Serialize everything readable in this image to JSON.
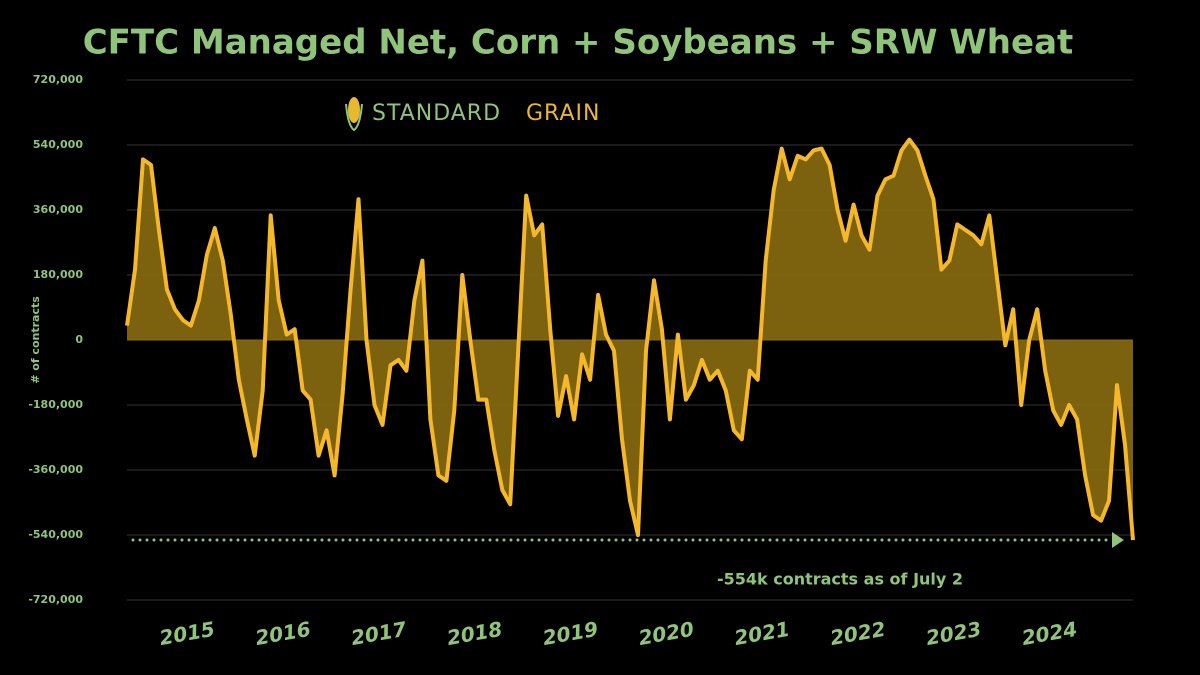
{
  "chart_data": {
    "type": "area",
    "title": "CFTC Managed Net, Corn + Soybeans + SRW Wheat",
    "y_label": "# of contracts",
    "brand": [
      "STANDARD",
      "GRAIN"
    ],
    "annotation": "-554k contracts as of July 2",
    "color": "#f5b82a",
    "fill_color": "#8a6b10",
    "grid": true,
    "ylim": [
      -720000,
      720000
    ],
    "yticks": [
      {
        "value": -720000,
        "label": "-720,000"
      },
      {
        "value": -540000,
        "label": "-540,000"
      },
      {
        "value": -360000,
        "label": "-360,000"
      },
      {
        "value": -180000,
        "label": "-180,000"
      },
      0,
      {
        "value": 180000,
        "label": "180,000"
      },
      {
        "value": 360000,
        "label": "360,000"
      },
      {
        "value": 540000,
        "label": "540,000"
      },
      {
        "value": 720000,
        "label": "720,000"
      }
    ],
    "categories": [
      null,
      null,
      null,
      null,
      null,
      null,
      null,
      null,
      null,
      null,
      null,
      null,
      "2015",
      null,
      null,
      null,
      null,
      null,
      null,
      null,
      null,
      null,
      null,
      null,
      "2016",
      null,
      null,
      null,
      null,
      null,
      null,
      null,
      null,
      null,
      null,
      null,
      "2017",
      null,
      null,
      null,
      null,
      null,
      null,
      null,
      null,
      null,
      null,
      null,
      "2018",
      null,
      null,
      null,
      null,
      null,
      null,
      null,
      null,
      null,
      null,
      null,
      "2019",
      null,
      null,
      null,
      null,
      null,
      null,
      null,
      null,
      null,
      null,
      null,
      "2020",
      null,
      null,
      null,
      null,
      null,
      null,
      null,
      null,
      null,
      null,
      null,
      "2021",
      null,
      null,
      null,
      null,
      null,
      null,
      null,
      null,
      null,
      null,
      null,
      "2022",
      null,
      null,
      null,
      null,
      null,
      null,
      null,
      null,
      null,
      null,
      null,
      "2023",
      null,
      null,
      null,
      null,
      null,
      null,
      null,
      null,
      null,
      null,
      null,
      "2024",
      null,
      null,
      null,
      null,
      null,
      null
    ],
    "values": [
      40000,
      195000,
      500000,
      485000,
      305000,
      140000,
      85000,
      55000,
      40000,
      110000,
      235000,
      310000,
      220000,
      70000,
      -110000,
      -220000,
      -320000,
      -140000,
      345000,
      110000,
      15000,
      30000,
      -140000,
      -165000,
      -320000,
      -250000,
      -375000,
      -150000,
      140000,
      390000,
      0,
      -180000,
      -235000,
      -70000,
      -55000,
      -85000,
      110000,
      220000,
      -220000,
      -375000,
      -390000,
      -195000,
      180000,
      0,
      -165000,
      -165000,
      -305000,
      -415000,
      -455000,
      -30000,
      400000,
      290000,
      320000,
      30000,
      -210000,
      -100000,
      -220000,
      -40000,
      -110000,
      125000,
      15000,
      -30000,
      -275000,
      -445000,
      -540000,
      -30000,
      165000,
      30000,
      -220000,
      15000,
      -165000,
      -125000,
      -55000,
      -110000,
      -85000,
      -140000,
      -250000,
      -275000,
      -85000,
      -110000,
      220000,
      415000,
      530000,
      445000,
      510000,
      500000,
      525000,
      530000,
      485000,
      360000,
      275000,
      375000,
      290000,
      250000,
      400000,
      445000,
      455000,
      525000,
      555000,
      525000,
      455000,
      390000,
      195000,
      220000,
      320000,
      305000,
      290000,
      265000,
      345000,
      165000,
      -15000,
      85000,
      -180000,
      0,
      85000,
      -85000,
      -195000,
      -235000,
      -180000,
      -220000,
      -375000,
      -485000,
      -500000,
      -445000,
      -125000,
      -290000,
      -554000
    ]
  }
}
